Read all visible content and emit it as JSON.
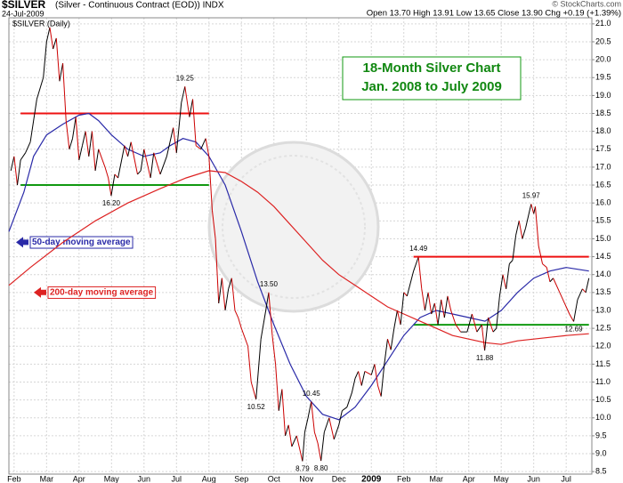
{
  "header": {
    "symbol": "$SILVER",
    "description": "(Silver - Continuous Contract (EOD)) INDX",
    "date": "24-Jul-2009",
    "quote": "Open 13.70 High 13.91 Low 13.65 Close 13.90 Chg +0.19 (+1.39%)",
    "source": "© StockCharts.com"
  },
  "chart_data": {
    "type": "line",
    "subtitle": "$SILVER (Daily)",
    "title": [
      "18-Month Silver Chart",
      "Jan. 2008 to July 2009"
    ],
    "xlim": [
      0.84,
      18.79
    ],
    "ylim": [
      8.43,
      21.17
    ],
    "grid": true,
    "xticks": [
      {
        "value": 1,
        "label": "Feb"
      },
      {
        "value": 2,
        "label": "Mar"
      },
      {
        "value": 3,
        "label": "Apr"
      },
      {
        "value": 4,
        "label": "May"
      },
      {
        "value": 5,
        "label": "Jun"
      },
      {
        "value": 6,
        "label": "Jul"
      },
      {
        "value": 7,
        "label": "Aug"
      },
      {
        "value": 8,
        "label": "Sep"
      },
      {
        "value": 9,
        "label": "Oct"
      },
      {
        "value": 10,
        "label": "Nov"
      },
      {
        "value": 11,
        "label": "Dec"
      },
      {
        "value": 12,
        "label": "2009"
      },
      {
        "value": 13,
        "label": "Feb"
      },
      {
        "value": 14,
        "label": "Mar"
      },
      {
        "value": 15,
        "label": "Apr"
      },
      {
        "value": 16,
        "label": "May"
      },
      {
        "value": 17,
        "label": "Jun"
      },
      {
        "value": 18,
        "label": "Jul"
      }
    ],
    "yticks": [
      8.5,
      {
        "value": 9,
        "label": "9.0"
      },
      9.5,
      {
        "value": 10,
        "label": "10.0"
      },
      10.5,
      {
        "value": 11,
        "label": "11.0"
      },
      11.5,
      {
        "value": 12,
        "label": "12.0"
      },
      12.5,
      {
        "value": 13,
        "label": "13.0"
      },
      13.5,
      {
        "value": 14,
        "label": "14.0"
      },
      14.5,
      {
        "value": 15,
        "label": "15.0"
      },
      15.5,
      {
        "value": 16,
        "label": "16.0"
      },
      16.5,
      {
        "value": 17,
        "label": "17.0"
      },
      17.5,
      {
        "value": 18,
        "label": "18.0"
      },
      18.5,
      {
        "value": 19,
        "label": "19.0"
      },
      19.5,
      {
        "value": 20,
        "label": "20.0"
      },
      20.5,
      {
        "value": 21,
        "label": "21.0"
      }
    ],
    "price": {
      "color": "#000000",
      "down_color": "#cc0000",
      "x": [
        0.9,
        1.0,
        1.1,
        1.2,
        1.35,
        1.5,
        1.7,
        1.9,
        2.0,
        2.1,
        2.2,
        2.3,
        2.4,
        2.5,
        2.6,
        2.7,
        2.8,
        2.9,
        3.0,
        3.1,
        3.2,
        3.3,
        3.4,
        3.5,
        3.6,
        3.8,
        3.9,
        3.99,
        4.1,
        4.2,
        4.4,
        4.5,
        4.6,
        4.8,
        4.9,
        5.0,
        5.2,
        5.3,
        5.5,
        5.7,
        5.9,
        6.0,
        6.15,
        6.26,
        6.4,
        6.5,
        6.6,
        6.75,
        6.9,
        7.0,
        7.1,
        7.2,
        7.3,
        7.4,
        7.5,
        7.6,
        7.7,
        7.8,
        7.9,
        8.0,
        8.2,
        8.3,
        8.45,
        8.6,
        8.75,
        8.84,
        8.95,
        9.05,
        9.15,
        9.25,
        9.35,
        9.45,
        9.55,
        9.7,
        9.88,
        9.95,
        10.05,
        10.15,
        10.25,
        10.35,
        10.45,
        10.55,
        10.7,
        10.85,
        11.0,
        11.1,
        11.25,
        11.4,
        11.5,
        11.6,
        11.7,
        11.8,
        12.0,
        12.1,
        12.2,
        12.3,
        12.4,
        12.5,
        12.6,
        12.7,
        12.8,
        12.9,
        13.0,
        13.1,
        13.3,
        13.45,
        13.55,
        13.65,
        13.75,
        13.85,
        13.95,
        14.05,
        14.15,
        14.25,
        14.35,
        14.45,
        14.6,
        14.75,
        14.95,
        15.1,
        15.25,
        15.4,
        15.49,
        15.6,
        15.75,
        15.85,
        15.95,
        16.05,
        16.15,
        16.25,
        16.35,
        16.45,
        16.55,
        16.65,
        16.75,
        16.92,
        17.0,
        17.05,
        17.15,
        17.27,
        17.4,
        17.5,
        17.6,
        17.8,
        17.95,
        18.1,
        18.23,
        18.35,
        18.5,
        18.6,
        18.7
      ],
      "values": [
        16.9,
        17.3,
        16.5,
        17.2,
        17.4,
        17.7,
        18.9,
        19.5,
        20.5,
        20.9,
        20.3,
        20.6,
        19.4,
        19.9,
        18.3,
        17.5,
        17.8,
        18.4,
        17.2,
        17.6,
        18.0,
        17.3,
        18.0,
        16.9,
        17.5,
        17.0,
        16.7,
        16.2,
        16.8,
        16.7,
        17.6,
        17.3,
        17.7,
        16.8,
        16.9,
        17.5,
        16.7,
        17.4,
        16.8,
        17.3,
        18.1,
        17.4,
        18.8,
        19.25,
        18.4,
        18.9,
        17.6,
        17.5,
        17.8,
        17.3,
        15.8,
        15.0,
        13.2,
        13.9,
        13.0,
        13.6,
        13.9,
        13.0,
        12.8,
        12.5,
        12.0,
        11.0,
        10.52,
        12.2,
        13.0,
        13.5,
        12.3,
        11.5,
        10.2,
        10.8,
        9.5,
        9.8,
        9.2,
        9.5,
        8.79,
        9.6,
        10.0,
        10.45,
        9.6,
        9.3,
        8.8,
        9.6,
        10.0,
        9.4,
        9.8,
        10.2,
        10.3,
        10.7,
        11.1,
        11.3,
        10.9,
        11.3,
        11.2,
        11.5,
        10.9,
        10.6,
        11.5,
        12.2,
        11.9,
        12.5,
        13.0,
        12.6,
        13.5,
        13.4,
        14.1,
        14.49,
        13.6,
        13.0,
        13.5,
        12.9,
        13.2,
        12.6,
        13.3,
        12.8,
        13.4,
        13.0,
        12.6,
        12.4,
        12.4,
        12.9,
        12.4,
        12.6,
        11.88,
        12.8,
        12.4,
        12.5,
        13.4,
        14.0,
        13.6,
        14.3,
        14.4,
        15.1,
        15.5,
        15.0,
        15.3,
        15.97,
        15.7,
        15.9,
        14.8,
        14.3,
        14.2,
        13.8,
        13.9,
        13.5,
        13.2,
        12.9,
        12.69,
        13.3,
        13.6,
        13.5,
        13.9
      ]
    },
    "series": [
      {
        "name": "50-day moving average",
        "color": "#2a2aa8",
        "x": [
          0.84,
          1.3,
          1.6,
          2.0,
          2.5,
          3.0,
          3.3,
          3.6,
          4.0,
          4.5,
          5.0,
          5.5,
          5.8,
          6.2,
          6.6,
          7.0,
          7.5,
          8.0,
          8.5,
          9.0,
          9.5,
          10.0,
          10.5,
          11.0,
          11.5,
          12.0,
          12.5,
          13.0,
          13.5,
          14.0,
          14.5,
          15.0,
          15.5,
          16.0,
          16.5,
          17.0,
          17.5,
          18.0,
          18.7
        ],
        "values": [
          15.2,
          16.3,
          17.3,
          17.9,
          18.2,
          18.45,
          18.5,
          18.3,
          17.9,
          17.5,
          17.3,
          17.4,
          17.6,
          17.8,
          17.7,
          17.3,
          16.5,
          15.2,
          13.8,
          12.6,
          11.5,
          10.6,
          10.1,
          9.95,
          10.3,
          10.9,
          11.6,
          12.3,
          12.8,
          13.0,
          12.9,
          12.8,
          12.7,
          13.0,
          13.5,
          13.9,
          14.1,
          14.2,
          14.1
        ]
      },
      {
        "name": "200-day moving average",
        "color": "#dd2222",
        "x": [
          0.84,
          1.5,
          2.5,
          3.5,
          4.5,
          5.5,
          6.3,
          7.0,
          7.5,
          8.0,
          8.5,
          9.0,
          9.5,
          10.0,
          10.5,
          11.0,
          11.5,
          12.0,
          12.5,
          13.0,
          13.5,
          14.0,
          14.5,
          15.0,
          15.5,
          16.0,
          16.5,
          17.0,
          17.5,
          18.0,
          18.7
        ],
        "values": [
          13.7,
          14.2,
          14.9,
          15.5,
          16.0,
          16.4,
          16.7,
          16.9,
          16.85,
          16.6,
          16.3,
          15.9,
          15.4,
          14.9,
          14.4,
          14.0,
          13.7,
          13.4,
          13.1,
          12.9,
          12.7,
          12.5,
          12.3,
          12.2,
          12.1,
          12.05,
          12.15,
          12.2,
          12.25,
          12.3,
          12.35
        ]
      }
    ],
    "levels": [
      {
        "value": 18.5,
        "color": "#ee1111",
        "xrange": [
          1.2,
          7.0
        ]
      },
      {
        "value": 16.5,
        "color": "#119911",
        "xrange": [
          1.2,
          7.0
        ]
      },
      {
        "value": 14.5,
        "color": "#ee1111",
        "xrange": [
          13.3,
          18.7
        ]
      },
      {
        "value": 12.6,
        "color": "#119911",
        "xrange": [
          13.3,
          18.7
        ]
      }
    ],
    "annotations": [
      {
        "x": 6.26,
        "value": 19.25,
        "label": "19.25"
      },
      {
        "x": 3.99,
        "value": 16.2,
        "label": "16.20"
      },
      {
        "x": 8.84,
        "value": 13.5,
        "label": "13.50"
      },
      {
        "x": 8.45,
        "value": 10.52,
        "label": "10.52"
      },
      {
        "x": 10.15,
        "value": 10.45,
        "label": "10.45"
      },
      {
        "x": 9.88,
        "value": 8.79,
        "label": "8.79"
      },
      {
        "x": 10.45,
        "value": 8.8,
        "label": "8.80"
      },
      {
        "x": 13.45,
        "value": 14.49,
        "label": "14.49"
      },
      {
        "x": 15.49,
        "value": 11.88,
        "label": "11.88"
      },
      {
        "x": 16.92,
        "value": 15.97,
        "label": "15.97"
      },
      {
        "x": 18.23,
        "value": 12.69,
        "label": "12.69"
      }
    ]
  }
}
